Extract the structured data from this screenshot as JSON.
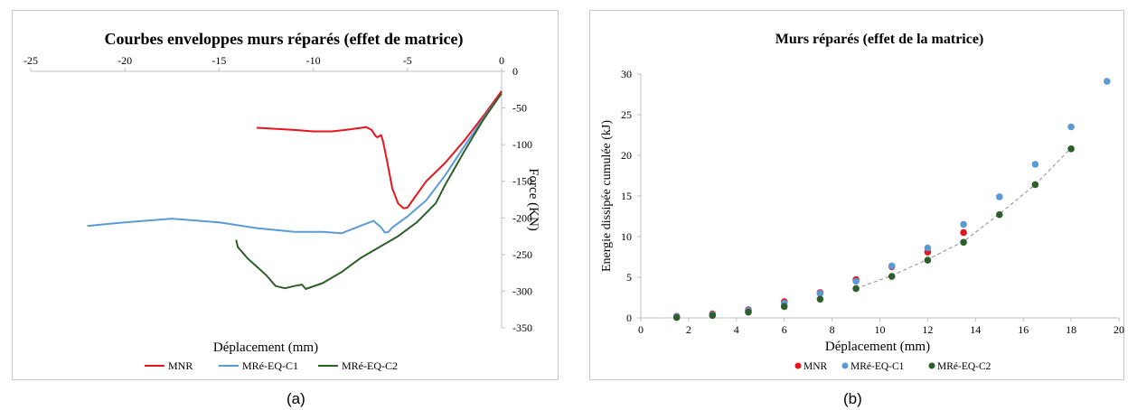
{
  "chart_data": [
    {
      "type": "line",
      "title": "Courbes enveloppes murs réparés (effet de matrice)",
      "xlabel": "Déplacement (mm)",
      "ylabel": "Force (KN)",
      "xlim": [
        -25,
        0
      ],
      "ylim": [
        -350,
        0
      ],
      "xticks": [
        "-25",
        "-20",
        "-15",
        "-10",
        "-5",
        "0"
      ],
      "yticks": [
        "0",
        "-50",
        "-100",
        "-150",
        "-200",
        "-250",
        "-300",
        "-350"
      ],
      "xtick_values": [
        -25,
        -20,
        -15,
        -10,
        -5,
        0
      ],
      "ytick_values": [
        0,
        -50,
        -100,
        -150,
        -200,
        -250,
        -300,
        -350
      ],
      "x_axis_position": "top",
      "y_axis_position": "right",
      "grid": false,
      "legend_position": "bottom",
      "series": [
        {
          "name": "MNR",
          "color": "#e8141c",
          "x": [
            -13,
            -11,
            -10,
            -9,
            -8,
            -7.2,
            -6.9,
            -6.7,
            -6.6,
            -6.4,
            -6.3,
            -6.1,
            -5.8,
            -5.5,
            -5.2,
            -5,
            -4.7,
            -4,
            -3,
            -2,
            -1,
            0
          ],
          "y": [
            -77,
            -80,
            -82,
            -82,
            -79,
            -76,
            -80,
            -88,
            -90,
            -87,
            -95,
            -120,
            -160,
            -180,
            -187,
            -186,
            -175,
            -150,
            -125,
            -95,
            -62,
            -27
          ]
        },
        {
          "name": "MRé-EQ-C1",
          "color": "#5b9bd5",
          "x": [
            -22,
            -20,
            -17.5,
            -15,
            -13,
            -11,
            -9.5,
            -8.5,
            -7.5,
            -6.8,
            -6.4,
            -6.2,
            -6,
            -5.8,
            -5,
            -4,
            -3,
            -2,
            -1,
            0
          ],
          "y": [
            -211,
            -206,
            -201,
            -206,
            -214,
            -219,
            -219,
            -221,
            -211,
            -204,
            -213,
            -220,
            -219,
            -213,
            -198,
            -176,
            -142,
            -103,
            -65,
            -30
          ]
        },
        {
          "name": "MRé-EQ-C2",
          "color": "#2e5e2a",
          "x": [
            -14.1,
            -14,
            -13.5,
            -12.5,
            -12,
            -11.5,
            -11,
            -10.6,
            -10.4,
            -9.5,
            -8.5,
            -7.5,
            -6.5,
            -5.5,
            -4.5,
            -3.5,
            -3,
            -2,
            -1,
            0
          ],
          "y": [
            -230,
            -240,
            -255,
            -278,
            -293,
            -296,
            -293,
            -291,
            -297,
            -289,
            -274,
            -255,
            -240,
            -225,
            -206,
            -180,
            -155,
            -110,
            -67,
            -30
          ]
        }
      ]
    },
    {
      "type": "scatter",
      "title": "Murs réparés (effet de la matrice)",
      "xlabel": "Déplacement (mm)",
      "ylabel": "Energie dissipée cumulée (kJ)",
      "xlim": [
        0,
        20
      ],
      "ylim": [
        0,
        30
      ],
      "xticks": [
        "0",
        "2",
        "4",
        "6",
        "8",
        "10",
        "12",
        "14",
        "16",
        "18",
        "20"
      ],
      "yticks": [
        "0",
        "5",
        "10",
        "15",
        "20",
        "25",
        "30"
      ],
      "xtick_values": [
        0,
        2,
        4,
        6,
        8,
        10,
        12,
        14,
        16,
        18,
        20
      ],
      "ytick_values": [
        0,
        5,
        10,
        15,
        20,
        25,
        30
      ],
      "grid": false,
      "legend_position": "bottom",
      "trendline": {
        "style": "dashed",
        "color": "#8a8a8a",
        "x": [
          9,
          10.5,
          12,
          13.5,
          15,
          16.5,
          18
        ],
        "y": [
          3.6,
          5.2,
          7.2,
          9.4,
          12.8,
          16.4,
          20.9
        ]
      },
      "series": [
        {
          "name": "MNR",
          "color": "#e8141c",
          "x": [
            1.5,
            3,
            4.5,
            6,
            7.5,
            9,
            10.5,
            12,
            13.5
          ],
          "y": [
            0.2,
            0.5,
            1.0,
            2.0,
            3.1,
            4.7,
            6.3,
            8.1,
            10.5
          ]
        },
        {
          "name": "MRé-EQ-C1",
          "color": "#5b9bd5",
          "x": [
            1.5,
            3,
            4.5,
            6,
            7.5,
            9,
            10.5,
            12,
            13.5,
            15,
            16.5,
            18,
            19.5
          ],
          "y": [
            0.15,
            0.4,
            0.9,
            1.8,
            3.0,
            4.5,
            6.4,
            8.6,
            11.5,
            14.9,
            18.9,
            23.5,
            29.1
          ]
        },
        {
          "name": "MRé-EQ-C2",
          "color": "#2e5e2a",
          "x": [
            1.5,
            3,
            4.5,
            6,
            7.5,
            9,
            10.5,
            12,
            13.5,
            15,
            16.5,
            18
          ],
          "y": [
            0.05,
            0.3,
            0.7,
            1.4,
            2.3,
            3.6,
            5.1,
            7.1,
            9.3,
            12.7,
            16.4,
            20.8
          ]
        }
      ]
    }
  ],
  "captions": {
    "a": "(a)",
    "b": "(b)"
  }
}
